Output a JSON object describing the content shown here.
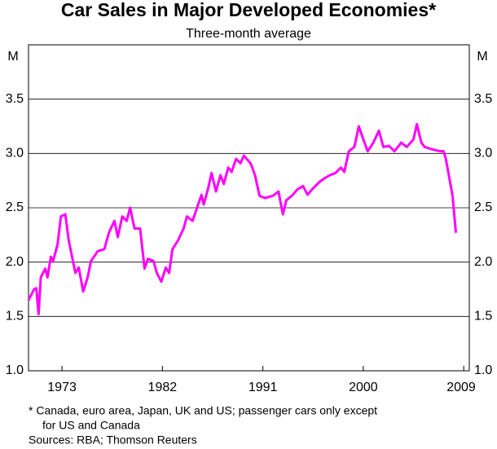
{
  "chart_data": {
    "type": "line",
    "title": "Car Sales in Major Developed Economies*",
    "subtitle": "Three-month average",
    "y_label": "M",
    "footnote": "*   Canada, euro area, Japan, UK and US; passenger cars only except",
    "footnote_cont": "for US and Canada",
    "source": "Sources: RBA; Thomson Reuters",
    "x": [
      1970.0,
      1970.5,
      1970.7,
      1970.9,
      1971.1,
      1971.5,
      1971.7,
      1972.0,
      1972.2,
      1972.6,
      1972.9,
      1973.3,
      1973.6,
      1974.2,
      1974.5,
      1974.9,
      1975.3,
      1975.6,
      1976.2,
      1976.8,
      1977.2,
      1977.7,
      1978.0,
      1978.4,
      1978.8,
      1979.1,
      1979.5,
      1980.0,
      1980.4,
      1980.7,
      1981.2,
      1981.5,
      1981.9,
      1982.3,
      1982.6,
      1982.9,
      1983.4,
      1983.9,
      1984.2,
      1984.7,
      1985.1,
      1985.5,
      1985.7,
      1986.1,
      1986.4,
      1986.8,
      1987.2,
      1987.5,
      1987.9,
      1988.2,
      1988.6,
      1989.0,
      1989.3,
      1989.9,
      1990.3,
      1990.7,
      1991.2,
      1991.9,
      1992.4,
      1992.8,
      1993.1,
      1993.6,
      1994.1,
      1994.6,
      1995.0,
      1995.5,
      1996.1,
      1996.5,
      1997.0,
      1997.5,
      1998.0,
      1998.3,
      1998.7,
      1999.2,
      1999.6,
      2000.0,
      2000.4,
      2000.9,
      2001.4,
      2001.8,
      2002.3,
      2002.8,
      2003.4,
      2003.9,
      2004.5,
      2004.8,
      2005.2,
      2005.5,
      2006.1,
      2006.9,
      2007.2,
      2007.4,
      2008.0,
      2008.3
    ],
    "series": [
      {
        "name": "Car sales",
        "color": "#ff00ff",
        "values": [
          1.65,
          1.75,
          1.76,
          1.52,
          1.86,
          1.94,
          1.86,
          2.05,
          2.01,
          2.16,
          2.42,
          2.44,
          2.2,
          1.9,
          1.95,
          1.73,
          1.86,
          2.01,
          2.1,
          2.12,
          2.27,
          2.38,
          2.23,
          2.42,
          2.38,
          2.5,
          2.31,
          2.31,
          1.94,
          2.03,
          2.01,
          1.9,
          1.82,
          1.95,
          1.9,
          2.12,
          2.2,
          2.31,
          2.42,
          2.38,
          2.5,
          2.62,
          2.53,
          2.68,
          2.82,
          2.65,
          2.8,
          2.72,
          2.87,
          2.83,
          2.95,
          2.91,
          2.98,
          2.91,
          2.8,
          2.61,
          2.59,
          2.61,
          2.65,
          2.44,
          2.57,
          2.61,
          2.67,
          2.7,
          2.62,
          2.68,
          2.74,
          2.77,
          2.8,
          2.82,
          2.87,
          2.83,
          3.02,
          3.06,
          3.25,
          3.13,
          3.02,
          3.1,
          3.21,
          3.06,
          3.07,
          3.02,
          3.1,
          3.06,
          3.13,
          3.27,
          3.1,
          3.06,
          3.04,
          3.02,
          3.02,
          2.95,
          2.61,
          2.27
        ]
      }
    ],
    "xlim": [
      1970,
      2009.5
    ],
    "xticks": [
      1973,
      1982,
      1991,
      2000,
      2009
    ],
    "ylim": [
      1,
      4
    ],
    "yticks": [
      {
        "value": 1,
        "label": "1.0"
      },
      1.5,
      {
        "value": 2,
        "label": "2.0"
      },
      2.5,
      {
        "value": 3,
        "label": "3.0"
      },
      3.5
    ],
    "grid": true
  }
}
